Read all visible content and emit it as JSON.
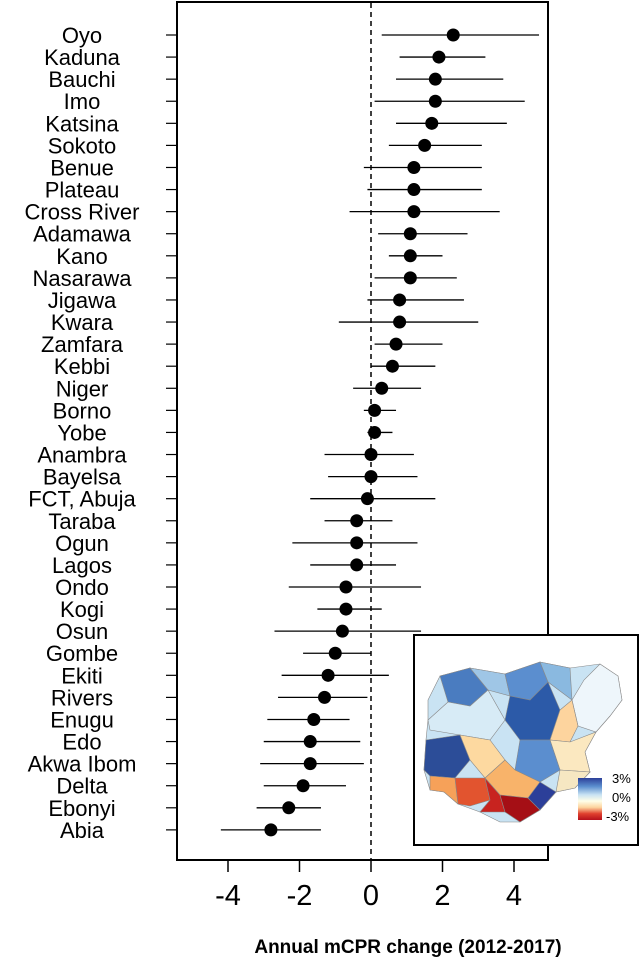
{
  "chart_data": {
    "type": "scatter",
    "subtype": "forest-plot",
    "xlabel": "Annual mCPR change (2012-2017)",
    "xlim": [
      -5.4,
      5.4
    ],
    "xticks": [
      -4,
      -2,
      0,
      2,
      4
    ],
    "xtick_labels": [
      "-4",
      "-2",
      "0",
      "2",
      "4"
    ],
    "reference_line": 0,
    "categories": [
      "Oyo",
      "Kaduna",
      "Bauchi",
      "Imo",
      "Katsina",
      "Sokoto",
      "Benue",
      "Plateau",
      "Cross River",
      "Adamawa",
      "Kano",
      "Nasarawa",
      "Jigawa",
      "Kwara",
      "Zamfara",
      "Kebbi",
      "Niger",
      "Borno",
      "Yobe",
      "Anambra",
      "Bayelsa",
      "FCT, Abuja",
      "Taraba",
      "Ogun",
      "Lagos",
      "Ondo",
      "Kogi",
      "Osun",
      "Gombe",
      "Ekiti",
      "Rivers",
      "Enugu",
      "Edo",
      "Akwa Ibom",
      "Delta",
      "Ebonyi",
      "Abia"
    ],
    "estimate": [
      2.3,
      1.9,
      1.8,
      1.8,
      1.7,
      1.5,
      1.2,
      1.2,
      1.2,
      1.1,
      1.1,
      1.1,
      0.8,
      0.8,
      0.7,
      0.6,
      0.3,
      0.1,
      0.1,
      0.0,
      0.0,
      -0.1,
      -0.4,
      -0.4,
      -0.4,
      -0.7,
      -0.7,
      -0.8,
      -1.0,
      -1.2,
      -1.3,
      -1.6,
      -1.7,
      -1.7,
      -1.9,
      -2.3,
      -2.8
    ],
    "lower": [
      0.3,
      0.8,
      0.7,
      0.1,
      0.7,
      0.5,
      -0.2,
      -0.1,
      -0.6,
      0.2,
      0.5,
      0.1,
      -0.1,
      -0.9,
      0.1,
      0.0,
      -0.5,
      -0.2,
      -0.1,
      -1.3,
      -1.2,
      -1.7,
      -1.3,
      -2.2,
      -1.7,
      -2.3,
      -1.5,
      -2.7,
      -1.9,
      -2.5,
      -2.6,
      -2.9,
      -3.0,
      -3.1,
      -3.0,
      -3.2,
      -4.2
    ],
    "upper": [
      4.7,
      3.2,
      3.7,
      4.3,
      3.8,
      3.1,
      3.1,
      3.1,
      3.6,
      2.7,
      2.0,
      2.4,
      2.6,
      3.0,
      2.0,
      1.8,
      1.4,
      0.7,
      0.6,
      1.2,
      1.3,
      1.8,
      0.6,
      1.3,
      0.7,
      1.4,
      0.3,
      1.4,
      0.0,
      0.5,
      -0.1,
      -0.6,
      -0.3,
      -0.2,
      -0.7,
      -1.4,
      -1.4
    ],
    "inset_map": {
      "description_legend": [
        "3%",
        "0%",
        "-3%"
      ],
      "colors": {
        "high": "#2c3f99",
        "mid_high": "#5b8ecf",
        "light_blue": "#c9e3f3",
        "neutral": "#fffee8",
        "light_orange": "#fdd49e",
        "orange": "#f6a159",
        "red": "#e0402e",
        "dark_red": "#b4101c"
      }
    }
  }
}
